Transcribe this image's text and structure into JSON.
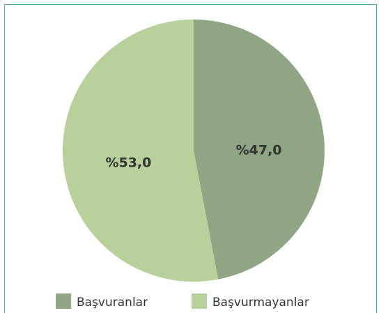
{
  "chart_data": {
    "type": "pie",
    "categories": [
      "Başvuranlar",
      "Başvurmayanlar"
    ],
    "values": [
      47,
      53
    ],
    "value_labels": [
      "%47,0",
      "%53,0"
    ],
    "colors": [
      "#8fa583",
      "#b8d09a"
    ]
  }
}
